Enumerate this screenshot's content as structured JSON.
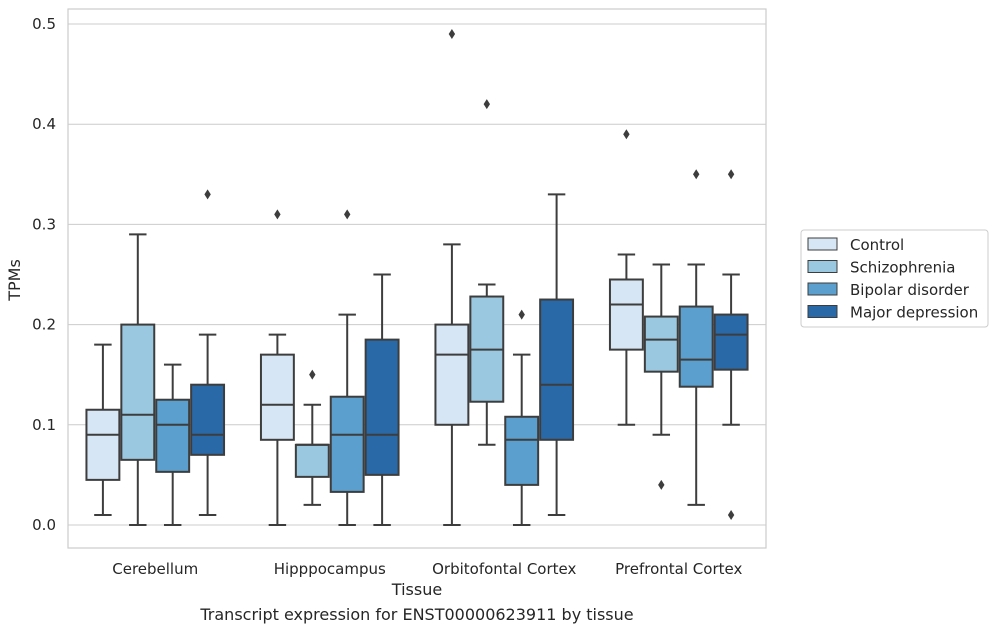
{
  "chart_data": {
    "type": "boxplot",
    "caption": "Transcript expression for ENST00000623911 by tissue",
    "xlabel": "Tissue",
    "ylabel": "TPMs",
    "ylim": [
      -0.023,
      0.515
    ],
    "yticks": [
      0.0,
      0.1,
      0.2,
      0.3,
      0.4,
      0.5
    ],
    "ytick_labels": [
      "0.0",
      "0.1",
      "0.2",
      "0.3",
      "0.4",
      "0.5"
    ],
    "grid": "horizontal",
    "legend_position": "right",
    "categories": [
      "Cerebellum",
      "Hipppocampus",
      "Orbitofontal Cortex",
      "Prefrontal Cortex"
    ],
    "series": [
      {
        "name": "Control",
        "color": "#d6e6f4",
        "boxes": [
          {
            "whislo": 0.01,
            "q1": 0.045,
            "med": 0.09,
            "q3": 0.115,
            "whishi": 0.18,
            "fliers": []
          },
          {
            "whislo": 0.0,
            "q1": 0.085,
            "med": 0.12,
            "q3": 0.17,
            "whishi": 0.19,
            "fliers": [
              0.31
            ]
          },
          {
            "whislo": 0.0,
            "q1": 0.1,
            "med": 0.17,
            "q3": 0.2,
            "whishi": 0.28,
            "fliers": [
              0.49
            ]
          },
          {
            "whislo": 0.1,
            "q1": 0.175,
            "med": 0.22,
            "q3": 0.245,
            "whishi": 0.27,
            "fliers": [
              0.39
            ]
          }
        ]
      },
      {
        "name": "Schizophrenia",
        "color": "#9ac8e0",
        "boxes": [
          {
            "whislo": 0.0,
            "q1": 0.065,
            "med": 0.11,
            "q3": 0.2,
            "whishi": 0.29,
            "fliers": []
          },
          {
            "whislo": 0.02,
            "q1": 0.048,
            "med": 0.08,
            "q3": 0.08,
            "whishi": 0.12,
            "fliers": [
              0.15
            ]
          },
          {
            "whislo": 0.08,
            "q1": 0.123,
            "med": 0.175,
            "q3": 0.228,
            "whishi": 0.24,
            "fliers": [
              0.42
            ]
          },
          {
            "whislo": 0.09,
            "q1": 0.153,
            "med": 0.185,
            "q3": 0.208,
            "whishi": 0.26,
            "fliers": [
              0.04
            ]
          }
        ]
      },
      {
        "name": "Bipolar disorder",
        "color": "#5a9fcd",
        "boxes": [
          {
            "whislo": 0.0,
            "q1": 0.053,
            "med": 0.1,
            "q3": 0.125,
            "whishi": 0.16,
            "fliers": []
          },
          {
            "whislo": 0.0,
            "q1": 0.033,
            "med": 0.09,
            "q3": 0.128,
            "whishi": 0.21,
            "fliers": [
              0.31
            ]
          },
          {
            "whislo": 0.0,
            "q1": 0.04,
            "med": 0.085,
            "q3": 0.108,
            "whishi": 0.17,
            "fliers": [
              0.21
            ]
          },
          {
            "whislo": 0.02,
            "q1": 0.138,
            "med": 0.165,
            "q3": 0.218,
            "whishi": 0.26,
            "fliers": [
              0.35
            ]
          }
        ]
      },
      {
        "name": "Major depression",
        "color": "#2969a8",
        "boxes": [
          {
            "whislo": 0.01,
            "q1": 0.07,
            "med": 0.09,
            "q3": 0.14,
            "whishi": 0.19,
            "fliers": [
              0.33
            ]
          },
          {
            "whislo": 0.0,
            "q1": 0.05,
            "med": 0.09,
            "q3": 0.185,
            "whishi": 0.25,
            "fliers": []
          },
          {
            "whislo": 0.01,
            "q1": 0.085,
            "med": 0.14,
            "q3": 0.225,
            "whishi": 0.33,
            "fliers": []
          },
          {
            "whislo": 0.1,
            "q1": 0.155,
            "med": 0.19,
            "q3": 0.21,
            "whishi": 0.25,
            "fliers": [
              0.35,
              0.01
            ]
          }
        ]
      }
    ]
  },
  "colors": {
    "line": "#3d3d3d",
    "grid": "#cccccc",
    "frame": "#cccccc",
    "text": "#262626"
  }
}
